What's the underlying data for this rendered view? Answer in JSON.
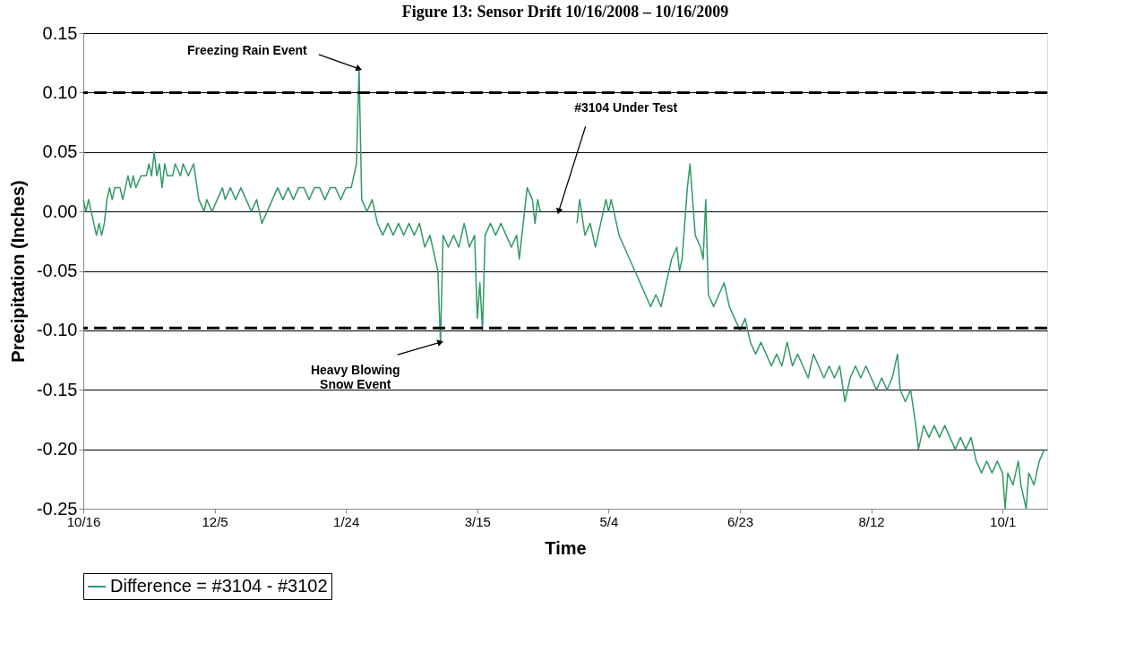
{
  "chart_data": {
    "type": "line",
    "title": "Figure 13: Sensor Drift 10/16/2008 – 10/16/2009",
    "xlabel": "Time",
    "ylabel": "Precipitation (Inches)",
    "xlim": [
      "2008-10-16",
      "2009-10-18"
    ],
    "xticks": [
      {
        "value": "2008-10-16",
        "label": "10/16"
      },
      {
        "value": "2008-12-05",
        "label": "12/5"
      },
      {
        "value": "2009-01-24",
        "label": "1/24"
      },
      {
        "value": "2009-03-15",
        "label": "3/15"
      },
      {
        "value": "2009-05-04",
        "label": "5/4"
      },
      {
        "value": "2009-06-23",
        "label": "6/23"
      },
      {
        "value": "2009-08-12",
        "label": "8/12"
      },
      {
        "value": "2009-10-01",
        "label": "10/1"
      }
    ],
    "ylim": [
      -0.25,
      0.15
    ],
    "yticks": [
      {
        "value": -0.25,
        "label": "-0.25"
      },
      {
        "value": -0.2,
        "label": "-0.20"
      },
      {
        "value": -0.15,
        "label": "-0.15"
      },
      {
        "value": -0.1,
        "label": "-0.10"
      },
      {
        "value": -0.05,
        "label": "-0.05"
      },
      {
        "value": 0,
        "label": "0.00"
      },
      {
        "value": 0.05,
        "label": "0.05"
      },
      {
        "value": 0.1,
        "label": "0.10"
      },
      {
        "value": 0.15,
        "label": "0.15"
      }
    ],
    "grid": "y",
    "legend": "bottom",
    "marker": "none",
    "line_style": "solid",
    "ref_lines": [
      {
        "axis": "y",
        "value": 0.1,
        "color": "#000000",
        "line_style": "dashed"
      },
      {
        "axis": "y",
        "value": -0.098,
        "color": "#000000",
        "line_style": "dashed"
      }
    ],
    "annotations": [
      {
        "text": "Freezing Rain Event",
        "x": "2009-01-29",
        "y": 0.12
      },
      {
        "text": "Heavy Blowing\nSnow Event",
        "x": "2009-03-01",
        "y": -0.11
      },
      {
        "text": "#3104 Under Test",
        "x": "2009-04-15",
        "y": 0.0
      }
    ],
    "series": [
      {
        "name": "Difference = #3104 - #3102",
        "color": "#339966",
        "x": [
          "2008-10-16",
          "2008-10-17",
          "2008-10-18",
          "2008-10-19",
          "2008-10-20",
          "2008-10-21",
          "2008-10-22",
          "2008-10-23",
          "2008-10-24",
          "2008-10-25",
          "2008-10-26",
          "2008-10-27",
          "2008-10-28",
          "2008-10-30",
          "2008-10-31",
          "2008-11-01",
          "2008-11-02",
          "2008-11-03",
          "2008-11-04",
          "2008-11-05",
          "2008-11-07",
          "2008-11-09",
          "2008-11-10",
          "2008-11-11",
          "2008-11-12",
          "2008-11-13",
          "2008-11-14",
          "2008-11-15",
          "2008-11-16",
          "2008-11-17",
          "2008-11-19",
          "2008-11-20",
          "2008-11-22",
          "2008-11-23",
          "2008-11-25",
          "2008-11-27",
          "2008-11-29",
          "2008-12-01",
          "2008-12-02",
          "2008-12-04",
          "2008-12-06",
          "2008-12-08",
          "2008-12-09",
          "2008-12-11",
          "2008-12-13",
          "2008-12-15",
          "2008-12-17",
          "2008-12-19",
          "2008-12-21",
          "2008-12-23",
          "2008-12-25",
          "2008-12-27",
          "2008-12-29",
          "2008-12-31",
          "2009-01-02",
          "2009-01-04",
          "2009-01-06",
          "2009-01-08",
          "2009-01-10",
          "2009-01-12",
          "2009-01-14",
          "2009-01-16",
          "2009-01-18",
          "2009-01-20",
          "2009-01-22",
          "2009-01-24",
          "2009-01-26",
          "2009-01-27",
          "2009-01-28",
          "2009-01-29",
          "2009-01-30",
          "2009-02-01",
          "2009-02-03",
          "2009-02-05",
          "2009-02-07",
          "2009-02-09",
          "2009-02-11",
          "2009-02-13",
          "2009-02-15",
          "2009-02-17",
          "2009-02-19",
          "2009-02-21",
          "2009-02-23",
          "2009-02-25",
          "2009-02-27",
          "2009-02-28",
          "2009-03-01",
          "2009-03-02",
          "2009-03-04",
          "2009-03-06",
          "2009-03-08",
          "2009-03-10",
          "2009-03-12",
          "2009-03-14",
          "2009-03-15",
          "2009-03-16",
          "2009-03-17",
          "2009-03-18",
          "2009-03-20",
          "2009-03-22",
          "2009-03-24",
          "2009-03-26",
          "2009-03-28",
          "2009-03-30",
          "2009-03-31",
          "2009-04-01",
          "2009-04-02",
          "2009-04-03",
          "2009-04-05",
          "2009-04-06",
          "2009-04-07",
          "2009-04-08",
          "2009-04-09",
          "2009-04-22",
          "2009-04-23",
          "2009-04-25",
          "2009-04-27",
          "2009-04-29",
          "2009-05-01",
          "2009-05-03",
          "2009-05-04",
          "2009-05-05",
          "2009-05-07",
          "2009-05-08",
          "2009-05-10",
          "2009-05-12",
          "2009-05-14",
          "2009-05-16",
          "2009-05-18",
          "2009-05-20",
          "2009-05-22",
          "2009-05-24",
          "2009-05-26",
          "2009-05-28",
          "2009-05-30",
          "2009-05-31",
          "2009-06-01",
          "2009-06-02",
          "2009-06-03",
          "2009-06-04",
          "2009-06-05",
          "2009-06-06",
          "2009-06-08",
          "2009-06-09",
          "2009-06-10",
          "2009-06-11",
          "2009-06-13",
          "2009-06-15",
          "2009-06-17",
          "2009-06-19",
          "2009-06-21",
          "2009-06-23",
          "2009-06-25",
          "2009-06-27",
          "2009-06-29",
          "2009-07-01",
          "2009-07-03",
          "2009-07-05",
          "2009-07-07",
          "2009-07-09",
          "2009-07-11",
          "2009-07-13",
          "2009-07-15",
          "2009-07-17",
          "2009-07-19",
          "2009-07-21",
          "2009-07-23",
          "2009-07-25",
          "2009-07-27",
          "2009-07-29",
          "2009-07-31",
          "2009-08-02",
          "2009-08-04",
          "2009-08-06",
          "2009-08-08",
          "2009-08-10",
          "2009-08-12",
          "2009-08-14",
          "2009-08-16",
          "2009-08-18",
          "2009-08-20",
          "2009-08-22",
          "2009-08-23",
          "2009-08-25",
          "2009-08-27",
          "2009-08-29",
          "2009-08-30",
          "2009-09-01",
          "2009-09-03",
          "2009-09-05",
          "2009-09-07",
          "2009-09-09",
          "2009-09-11",
          "2009-09-13",
          "2009-09-15",
          "2009-09-17",
          "2009-09-19",
          "2009-09-21",
          "2009-09-23",
          "2009-09-25",
          "2009-09-27",
          "2009-09-29",
          "2009-10-01",
          "2009-10-02",
          "2009-10-03",
          "2009-10-05",
          "2009-10-07",
          "2009-10-08",
          "2009-10-10",
          "2009-10-11",
          "2009-10-13",
          "2009-10-15",
          "2009-10-17"
        ],
        "values": [
          0.01,
          0,
          0.01,
          0,
          -0.01,
          -0.02,
          -0.01,
          -0.02,
          -0.01,
          0.01,
          0.02,
          0.01,
          0.02,
          0.02,
          0.01,
          0.02,
          0.03,
          0.02,
          0.03,
          0.02,
          0.03,
          0.03,
          0.04,
          0.03,
          0.05,
          0.03,
          0.04,
          0.02,
          0.04,
          0.03,
          0.03,
          0.04,
          0.03,
          0.04,
          0.03,
          0.04,
          0.01,
          0,
          0.01,
          0,
          0.01,
          0.02,
          0.01,
          0.02,
          0.01,
          0.02,
          0.01,
          0,
          0.01,
          -0.01,
          0,
          0.01,
          0.02,
          0.01,
          0.02,
          0.01,
          0.02,
          0.02,
          0.01,
          0.02,
          0.02,
          0.01,
          0.02,
          0.02,
          0.01,
          0.02,
          0.02,
          0.03,
          0.04,
          0.12,
          0.01,
          0,
          0.01,
          -0.01,
          -0.02,
          -0.01,
          -0.02,
          -0.01,
          -0.02,
          -0.01,
          -0.02,
          -0.01,
          -0.03,
          -0.02,
          -0.04,
          -0.05,
          -0.11,
          -0.02,
          -0.03,
          -0.02,
          -0.03,
          -0.01,
          -0.03,
          -0.02,
          -0.09,
          -0.06,
          -0.1,
          -0.02,
          -0.01,
          -0.02,
          -0.01,
          -0.02,
          -0.03,
          -0.02,
          -0.04,
          -0.02,
          0,
          0.02,
          0.01,
          -0.01,
          0.01,
          0,
          null,
          -0.01,
          0.01,
          -0.02,
          -0.01,
          -0.03,
          -0.01,
          0.01,
          0,
          0.01,
          -0.01,
          -0.02,
          -0.03,
          -0.04,
          -0.05,
          -0.06,
          -0.07,
          -0.08,
          -0.07,
          -0.08,
          -0.06,
          -0.04,
          -0.03,
          -0.05,
          -0.04,
          -0.01,
          0.02,
          0.04,
          0.01,
          -0.02,
          -0.03,
          -0.04,
          0.01,
          -0.07,
          -0.08,
          -0.07,
          -0.06,
          -0.08,
          -0.09,
          -0.1,
          -0.09,
          -0.11,
          -0.12,
          -0.11,
          -0.12,
          -0.13,
          -0.12,
          -0.13,
          -0.11,
          -0.13,
          -0.12,
          -0.13,
          -0.14,
          -0.12,
          -0.13,
          -0.14,
          -0.13,
          -0.14,
          -0.13,
          -0.16,
          -0.14,
          -0.13,
          -0.14,
          -0.13,
          -0.14,
          -0.15,
          -0.14,
          -0.15,
          -0.14,
          -0.12,
          -0.15,
          -0.16,
          -0.15,
          -0.18,
          -0.2,
          -0.18,
          -0.19,
          -0.18,
          -0.19,
          -0.18,
          -0.19,
          -0.2,
          -0.19,
          -0.2,
          -0.19,
          -0.21,
          -0.22,
          -0.21,
          -0.22,
          -0.21,
          -0.22,
          -0.25,
          -0.22,
          -0.23,
          -0.21,
          -0.23,
          -0.25,
          -0.22,
          -0.23,
          -0.21,
          -0.2
        ]
      }
    ]
  }
}
